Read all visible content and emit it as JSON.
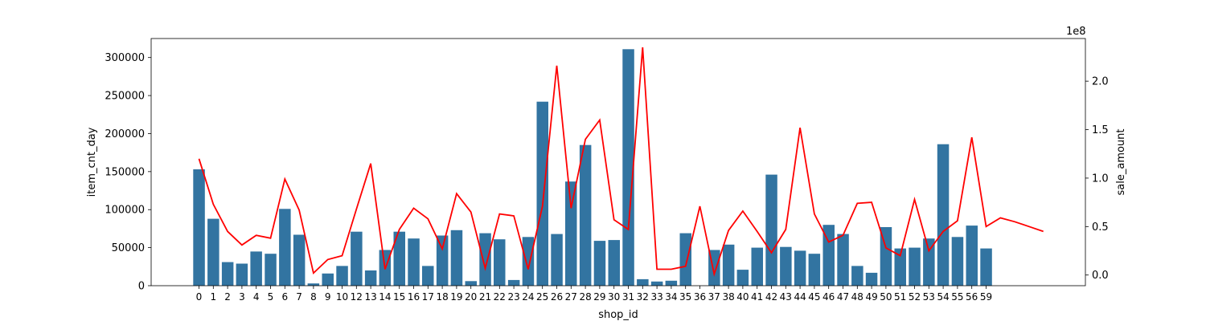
{
  "chart_data": {
    "type": "bar",
    "xlabel": "shop_id",
    "ylabel": "item_cnt_day",
    "ylabel_right": "sale_amount",
    "right_axis_multiplier": "1e8",
    "categories": [
      "0",
      "1",
      "2",
      "3",
      "4",
      "5",
      "6",
      "7",
      "8",
      "9",
      "10",
      "12",
      "13",
      "14",
      "15",
      "16",
      "17",
      "18",
      "19",
      "20",
      "21",
      "22",
      "23",
      "24",
      "25",
      "26",
      "27",
      "28",
      "29",
      "30",
      "31",
      "32",
      "33",
      "34",
      "35",
      "36",
      "37",
      "38",
      "40",
      "41",
      "42",
      "43",
      "44",
      "45",
      "46",
      "47",
      "48",
      "49",
      "50",
      "51",
      "52",
      "53",
      "54",
      "55",
      "56",
      "59"
    ],
    "series": [
      {
        "name": "item_cnt_day",
        "type": "bar",
        "axis": "left",
        "color": "#3274a1",
        "values": [
          153000,
          88000,
          31000,
          29000,
          45000,
          42000,
          101000,
          67000,
          3000,
          16000,
          26000,
          71000,
          20000,
          47000,
          71000,
          62000,
          26000,
          66000,
          73000,
          6000,
          69000,
          61000,
          7500,
          64000,
          242000,
          68000,
          137000,
          185000,
          59000,
          60000,
          311000,
          8500,
          5500,
          6500,
          69000,
          0,
          47000,
          54000,
          21000,
          50000,
          146000,
          51000,
          46000,
          42000,
          80000,
          68000,
          26000,
          17000,
          77000,
          49000,
          50000,
          62000,
          186000,
          64000,
          79000,
          49000
        ]
      },
      {
        "name": "sale_amount",
        "type": "line",
        "axis": "right",
        "color": "#ff0000",
        "x": [
          0,
          1,
          2,
          3,
          4,
          5,
          6,
          7,
          8,
          9,
          10,
          11,
          12,
          13,
          14,
          15,
          16,
          17,
          18,
          19,
          20,
          21,
          22,
          23,
          24,
          25,
          26,
          27,
          28,
          29,
          30,
          31,
          32,
          33,
          34,
          35,
          36,
          37,
          38,
          39,
          40,
          41,
          42,
          43,
          44,
          45,
          46,
          47,
          48,
          49,
          50,
          51,
          52,
          53,
          54,
          55,
          56,
          57,
          58,
          59
        ],
        "values": [
          1.2,
          0.73,
          0.45,
          0.31,
          0.41,
          0.38,
          0.99,
          0.67,
          0.02,
          0.16,
          0.2,
          0.68,
          1.15,
          0.06,
          0.47,
          0.69,
          0.58,
          0.27,
          0.84,
          0.65,
          0.07,
          0.63,
          0.61,
          0.06,
          0.71,
          2.16,
          0.69,
          1.4,
          1.6,
          0.57,
          0.47,
          2.35,
          0.06,
          0.06,
          0.09,
          0.71,
          0.01,
          0.46,
          0.66,
          0.45,
          0.23,
          0.47,
          1.52,
          0.63,
          0.34,
          0.41,
          0.74,
          0.75,
          0.28,
          0.2,
          0.78,
          0.25,
          0.45,
          0.56,
          1.42,
          0.5,
          0.59,
          0.55,
          0.5,
          0.45
        ]
      }
    ],
    "ylim": [
      0,
      325000
    ],
    "yticks": [
      0,
      50000,
      100000,
      150000,
      200000,
      250000,
      300000
    ],
    "y2lim": [
      -0.11,
      2.44
    ],
    "y2ticks": [
      0.0,
      0.5,
      1.0,
      1.5,
      2.0
    ],
    "grid": false,
    "legend": "none"
  }
}
